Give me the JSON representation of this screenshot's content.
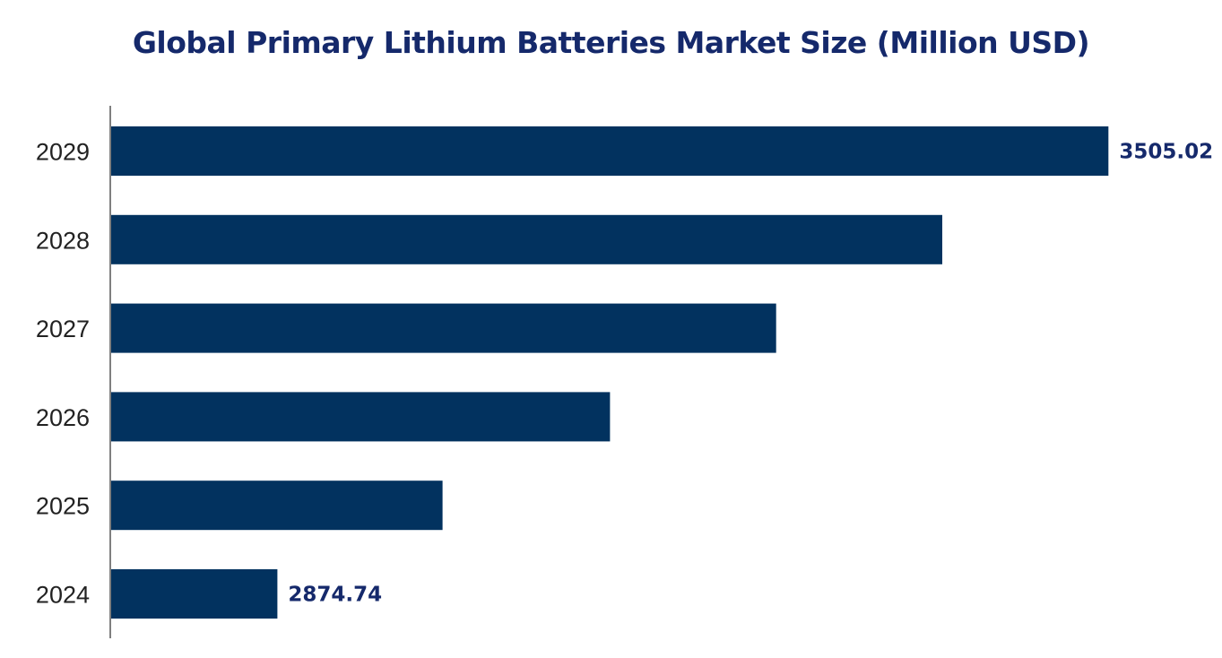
{
  "chart_data": {
    "type": "bar",
    "orientation": "horizontal",
    "title": "Global Primary Lithium Batteries Market Size (Million USD)",
    "xlabel": "",
    "ylabel": "",
    "categories": [
      "2029",
      "2028",
      "2027",
      "2026",
      "2025",
      "2024"
    ],
    "values": [
      3505.02,
      3379,
      3253,
      3127,
      3000,
      2874.74
    ],
    "data_labels": {
      "2029": "3505.02",
      "2024": "2874.74"
    },
    "xlim": [
      2748,
      3600
    ],
    "grid": false,
    "legend": "none",
    "colors": {
      "bar": "#02325f",
      "title": "#15296b",
      "data_label": "#15296b"
    }
  }
}
